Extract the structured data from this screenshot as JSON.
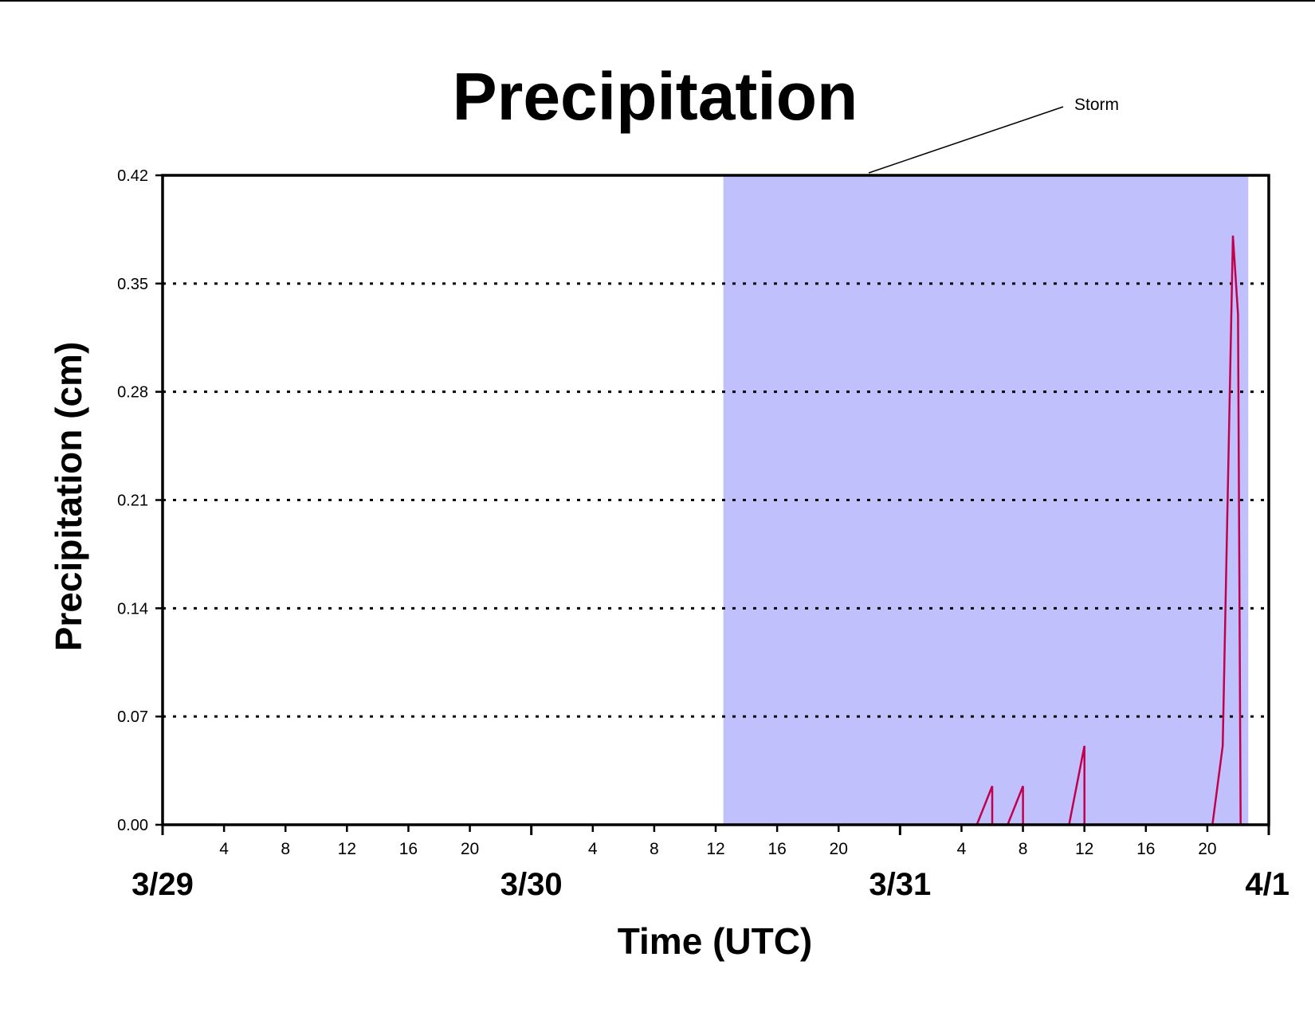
{
  "chart_data": {
    "type": "line",
    "title": "Precipitation",
    "xlabel": "Time (UTC)",
    "ylabel": "Precipitation (cm)",
    "x_unit": "hours (UTC), 3/29 00:00 to 4/1 00:00",
    "xlim": [
      "3/29 00:00",
      "4/1 00:00"
    ],
    "ylim": [
      0,
      0.42
    ],
    "y_ticks": [
      "0.00",
      "0.07",
      "0.14",
      "0.21",
      "0.28",
      "0.35",
      "0.42"
    ],
    "y_tick_values": [
      0,
      0.07,
      0.14,
      0.21,
      0.28,
      0.35,
      0.42
    ],
    "grid": "horizontal dotted",
    "hour_tick_labels": [
      "4",
      "8",
      "12",
      "16",
      "20"
    ],
    "day_labels": [
      {
        "label": "3/29",
        "date": "3/29 00:00"
      },
      {
        "label": "3/30",
        "date": "3/30 00:00"
      },
      {
        "label": "3/31",
        "date": "3/31 00:00"
      },
      {
        "label": "4/1",
        "date": "4/1 00:00"
      }
    ],
    "shaded_region": {
      "label": "Storm",
      "start": "3/30 12:30",
      "end": "3/31 22:40",
      "color": "#c0c0fd"
    },
    "series": [
      {
        "color": "#c2004e",
        "points": [
          {
            "t": "3/29 00:00",
            "y": 0
          },
          {
            "t": "3/31 05:00",
            "y": 0
          },
          {
            "t": "3/31 06:00",
            "y": 0.025
          },
          {
            "t": "3/31 06:00",
            "y": 0
          },
          {
            "t": "3/31 07:00",
            "y": 0
          },
          {
            "t": "3/31 08:00",
            "y": 0.025
          },
          {
            "t": "3/31 08:00",
            "y": 0
          },
          {
            "t": "3/31 11:00",
            "y": 0
          },
          {
            "t": "3/31 12:00",
            "y": 0.051
          },
          {
            "t": "3/31 12:00",
            "y": 0
          },
          {
            "t": "3/31 20:20",
            "y": 0
          },
          {
            "t": "3/31 21:00",
            "y": 0.051
          },
          {
            "t": "3/31 21:40",
            "y": 0.381
          },
          {
            "t": "3/31 22:00",
            "y": 0.33
          },
          {
            "t": "3/31 22:10",
            "y": 0
          },
          {
            "t": "3/31 22:40",
            "y": 0
          }
        ]
      }
    ],
    "colors": {
      "shade": "#c0c0fd",
      "line": "#c2004e",
      "axis": "#000000"
    }
  }
}
